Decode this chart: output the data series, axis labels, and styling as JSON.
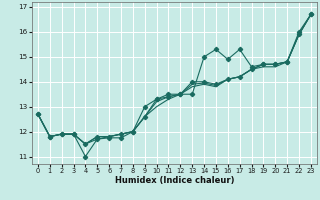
{
  "title": "",
  "xlabel": "Humidex (Indice chaleur)",
  "ylabel": "",
  "xlim": [
    -0.5,
    23.5
  ],
  "ylim": [
    10.7,
    17.2
  ],
  "yticks": [
    11,
    12,
    13,
    14,
    15,
    16,
    17
  ],
  "xticks": [
    0,
    1,
    2,
    3,
    4,
    5,
    6,
    7,
    8,
    9,
    10,
    11,
    12,
    13,
    14,
    15,
    16,
    17,
    18,
    19,
    20,
    21,
    22,
    23
  ],
  "bg_color": "#c8ebe6",
  "grid_color": "#b0ddd8",
  "line_color": "#1a6b60",
  "lines": [
    [
      12.7,
      11.8,
      11.9,
      11.9,
      11.0,
      11.7,
      11.75,
      11.75,
      12.0,
      12.6,
      13.3,
      13.5,
      13.5,
      13.5,
      15.0,
      15.3,
      14.9,
      15.3,
      14.6,
      14.7,
      14.7,
      14.8,
      16.0,
      16.7
    ],
    [
      12.7,
      11.8,
      11.9,
      11.9,
      11.5,
      11.8,
      11.8,
      11.9,
      12.0,
      13.0,
      13.3,
      13.4,
      13.5,
      14.0,
      14.0,
      13.9,
      14.1,
      14.2,
      14.5,
      14.7,
      14.7,
      14.8,
      15.9,
      16.7
    ],
    [
      12.7,
      11.8,
      11.9,
      11.9,
      11.5,
      11.8,
      11.8,
      11.9,
      12.0,
      12.6,
      13.2,
      13.4,
      13.5,
      13.9,
      13.95,
      13.85,
      14.1,
      14.2,
      14.5,
      14.7,
      14.7,
      14.8,
      15.9,
      16.7
    ],
    [
      12.7,
      11.8,
      11.9,
      11.9,
      11.5,
      11.7,
      11.8,
      11.9,
      12.0,
      12.6,
      13.0,
      13.3,
      13.5,
      13.8,
      13.9,
      13.8,
      14.1,
      14.2,
      14.5,
      14.6,
      14.6,
      14.8,
      15.9,
      16.7
    ]
  ],
  "has_markers": [
    true,
    true,
    false,
    false
  ],
  "marker_indices": [
    [
      0,
      1,
      2,
      3,
      4,
      5,
      6,
      7,
      8,
      9,
      10,
      11,
      12,
      13,
      14,
      15,
      16,
      17,
      18,
      19,
      20,
      21,
      22,
      23
    ],
    [
      0,
      1,
      2,
      3,
      4,
      5,
      6,
      7,
      8,
      9,
      10,
      11,
      12,
      13,
      14,
      15,
      16,
      17,
      18,
      19,
      20,
      21,
      22,
      23
    ],
    [],
    []
  ]
}
